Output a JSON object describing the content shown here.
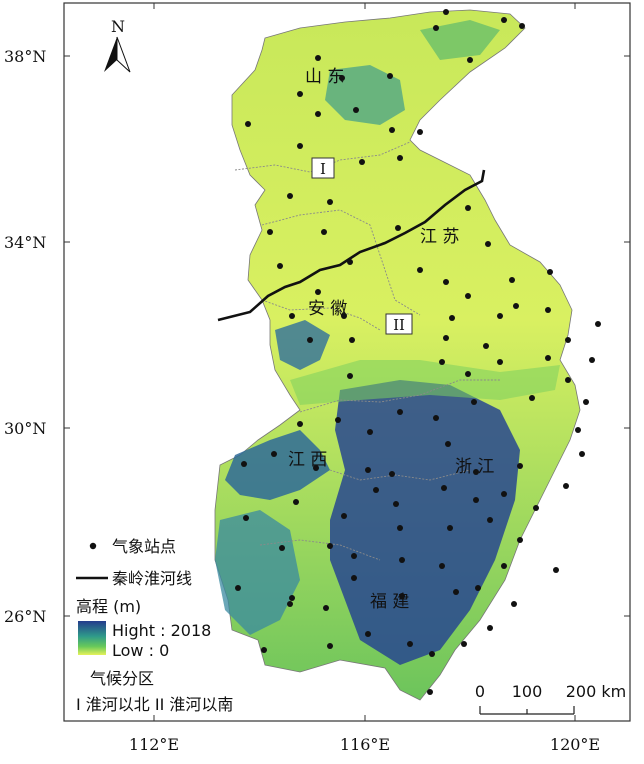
{
  "axes": {
    "lat_ticks": [
      "38°N",
      "34°N",
      "30°N",
      "26°N"
    ],
    "lon_ticks": [
      "112°E",
      "116°E",
      "120°E"
    ]
  },
  "north_arrow": {
    "label": "N",
    "icon": "north-arrow-icon"
  },
  "provinces": {
    "shandong": "山 东",
    "jiangsu": "江 苏",
    "anhui": "安 徽",
    "jiangxi": "江 西",
    "zhejiang": "浙 江",
    "fujian": "福 建"
  },
  "zones": {
    "zone1": "I",
    "zone2": "II"
  },
  "legend": {
    "stations": "气象站点",
    "qinling_line": "秦岭淮河线",
    "elevation_title": "高程 (m)",
    "high": "Hight : 2018",
    "low": "Low : 0",
    "climate_title": "气候分区",
    "climate_items": "I 淮河以北  II 淮河以南"
  },
  "scale_bar": {
    "tick_0": "0",
    "tick_100": "100",
    "tick_200": "200 km"
  },
  "colors": {
    "low": "#e6f25a",
    "mid": "#56c45a",
    "high": "#243c8c",
    "line": "#111111"
  }
}
